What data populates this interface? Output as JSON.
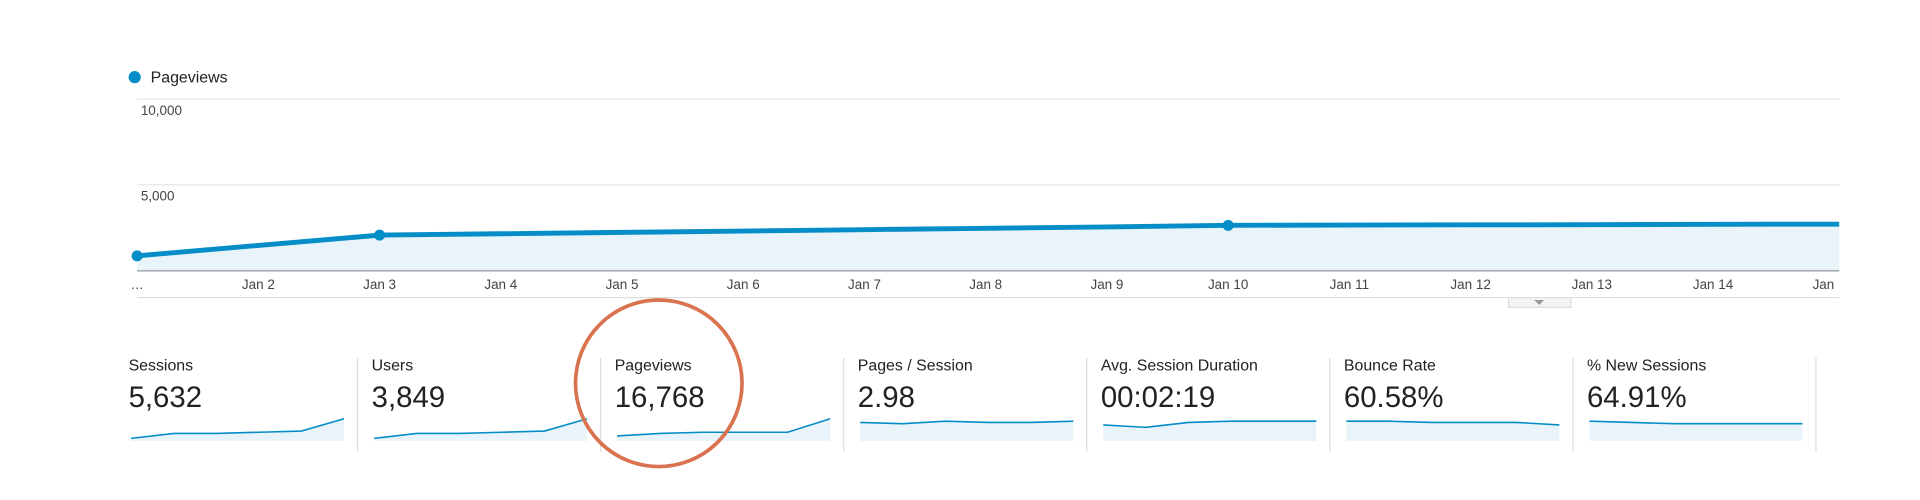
{
  "chart_data": {
    "type": "line",
    "categories": [
      "…",
      "Jan 2",
      "Jan 3",
      "Jan 4",
      "Jan 5",
      "Jan 6",
      "Jan 7",
      "Jan 8",
      "Jan 9",
      "Jan 10",
      "Jan 11",
      "Jan 12",
      "Jan 13",
      "Jan 14",
      "Jan"
    ],
    "series": [
      {
        "name": "Pageviews",
        "color": "#058dc7",
        "values": [
          860,
          1470,
          2070,
          2150,
          2230,
          2310,
          2390,
          2470,
          2550,
          2640,
          2660,
          2670,
          2680,
          2700,
          2710
        ]
      }
    ],
    "ylim": [
      0,
      10000
    ],
    "yticks": [
      {
        "value": 5000,
        "label": "5,000"
      },
      {
        "value": 10000,
        "label": "10,000"
      }
    ],
    "grid": true
  },
  "metrics": [
    {
      "label": "Sessions",
      "value": "5,632"
    },
    {
      "label": "Users",
      "value": "3,849"
    },
    {
      "label": "Pageviews",
      "value": "16,768"
    },
    {
      "label": "Pages / Session",
      "value": "2.98"
    },
    {
      "label": "Avg. Session Duration",
      "value": "00:02:19"
    },
    {
      "label": "Bounce Rate",
      "value": "60.58%"
    },
    {
      "label": "% New Sessions",
      "value": "64.91%"
    }
  ]
}
